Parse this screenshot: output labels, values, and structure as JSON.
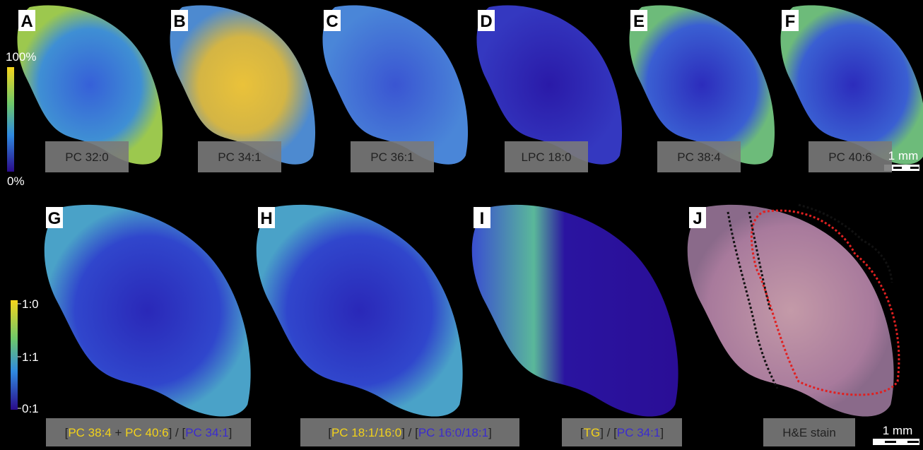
{
  "top_row": {
    "panels": [
      {
        "letter": "A",
        "label": "PC 32:0"
      },
      {
        "letter": "B",
        "label": "PC 34:1"
      },
      {
        "letter": "C",
        "label": "PC 36:1"
      },
      {
        "letter": "D",
        "label": "LPC 18:0"
      },
      {
        "letter": "E",
        "label": "PC 38:4"
      },
      {
        "letter": "F",
        "label": "PC 40:6"
      }
    ]
  },
  "colorbar_top": {
    "max": "100%",
    "min": "0%"
  },
  "colorbar_bottom": {
    "ticks": [
      "1:0",
      "1:1",
      "0:1"
    ]
  },
  "scale_bars": [
    "1 mm",
    "1 mm"
  ],
  "bottom_row": {
    "panels": [
      {
        "letter": "G",
        "label": [
          {
            "text": "[",
            "color": "#222222"
          },
          {
            "text": "PC 38:4",
            "color": "#f2d21a"
          },
          {
            "text": " + ",
            "color": "#222222"
          },
          {
            "text": "PC 40:6",
            "color": "#f2d21a"
          },
          {
            "text": "] / [",
            "color": "#222222"
          },
          {
            "text": "PC 34:1",
            "color": "#3a2bd0"
          },
          {
            "text": "]",
            "color": "#222222"
          }
        ]
      },
      {
        "letter": "H",
        "label": [
          {
            "text": "[",
            "color": "#222222"
          },
          {
            "text": "PC 18:1/16:0",
            "color": "#f2d21a"
          },
          {
            "text": "] / [",
            "color": "#222222"
          },
          {
            "text": "PC 16:0/18:1",
            "color": "#3a2bd0"
          },
          {
            "text": "]",
            "color": "#222222"
          }
        ]
      },
      {
        "letter": "I",
        "label": [
          {
            "text": "[",
            "color": "#222222"
          },
          {
            "text": "TG",
            "color": "#f2d21a"
          },
          {
            "text": "] / [",
            "color": "#222222"
          },
          {
            "text": "PC 34:1",
            "color": "#3a2bd0"
          },
          {
            "text": "]",
            "color": "#222222"
          }
        ]
      },
      {
        "letter": "J",
        "label": [
          {
            "text": "H&E stain",
            "color": "#222222"
          }
        ]
      }
    ]
  }
}
